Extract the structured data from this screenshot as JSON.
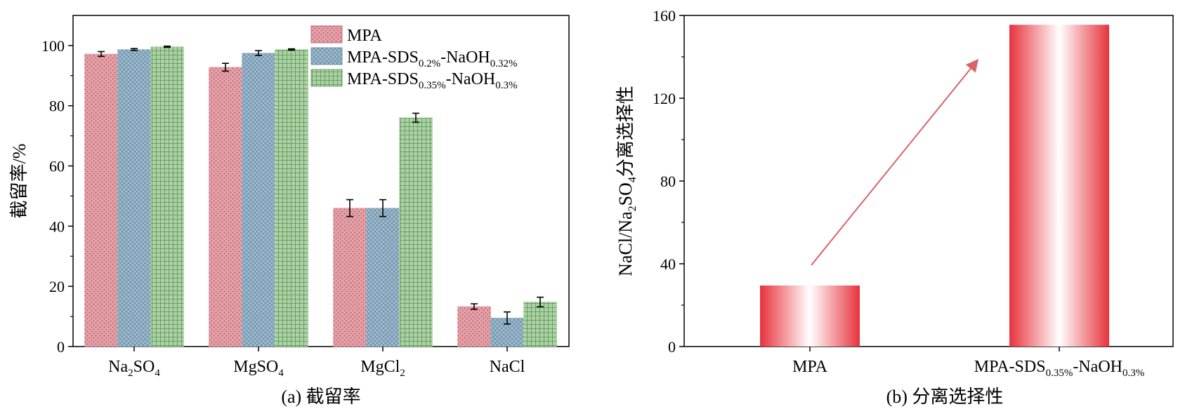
{
  "chart_data": [
    {
      "type": "bar",
      "title": "",
      "caption": "(a) 截留率",
      "xlabel": "",
      "ylabel": "截留率/%",
      "ylim": [
        0,
        110
      ],
      "yticks": [
        "0",
        "20",
        "40",
        "60",
        "80",
        "100"
      ],
      "categories": [
        {
          "base": "Na",
          "sub1": "2",
          "mid": "SO",
          "sub2": "4"
        },
        {
          "base": "MgSO",
          "sub1": "4",
          "mid": "",
          "sub2": ""
        },
        {
          "base": "MgCl",
          "sub1": "2",
          "mid": "",
          "sub2": ""
        },
        {
          "base": "NaCl",
          "sub1": "",
          "mid": "",
          "sub2": ""
        }
      ],
      "category_labels": [
        "Na2SO4",
        "MgSO4",
        "MgCl2",
        "NaCl"
      ],
      "series": [
        {
          "name": "MPA",
          "legend": {
            "a": "MPA",
            "s1": "",
            "b": "",
            "s2": ""
          },
          "values": [
            97.2,
            92.8,
            46.0,
            13.3
          ],
          "errors": [
            0.8,
            1.3,
            2.8,
            0.9
          ],
          "color": "#e6a1a8"
        },
        {
          "name": "MPA-SDS0.2%-NaOH0.32%",
          "legend": {
            "a": "MPA-SDS",
            "s1": "0.2%",
            "b": "-NaOH",
            "s2": "0.32%"
          },
          "values": [
            98.7,
            97.5,
            46.0,
            9.5
          ],
          "errors": [
            0.3,
            0.8,
            2.8,
            2.0
          ],
          "color": "#9fbdd0"
        },
        {
          "name": "MPA-SDS0.35%-NaOH0.3%",
          "legend": {
            "a": "MPA-SDS",
            "s1": "0.35%",
            "b": "-NaOH",
            "s2": "0.3%"
          },
          "values": [
            99.6,
            98.7,
            76.0,
            14.8
          ],
          "errors": [
            0.2,
            0.2,
            1.5,
            1.6
          ],
          "color": "#a9d3a2"
        }
      ],
      "legend_position": "top-right"
    },
    {
      "type": "bar",
      "title": "",
      "caption": "(b) 分离选择性",
      "xlabel": "",
      "ylabel": "NaCl/Na2SO4分离选择性",
      "ylabel_parts": {
        "a": "NaCl/Na",
        "s1": "2",
        "b": "SO",
        "s2": "4",
        "c": "分离选择性"
      },
      "ylim": [
        0,
        160
      ],
      "yticks": [
        "0",
        "40",
        "80",
        "120",
        "160"
      ],
      "categories": [
        {
          "a": "MPA",
          "s1": "",
          "b": "",
          "s2": ""
        },
        {
          "a": "MPA-SDS",
          "s1": "0.35%",
          "b": "-NaOH",
          "s2": "0.3%"
        }
      ],
      "category_labels": [
        "MPA",
        "MPA-SDS0.35%-NaOH0.3%"
      ],
      "values": [
        29.5,
        155.5
      ],
      "color": "#e8323c",
      "annotation": "increase-arrow",
      "arrow_color": "#d9636b"
    }
  ]
}
